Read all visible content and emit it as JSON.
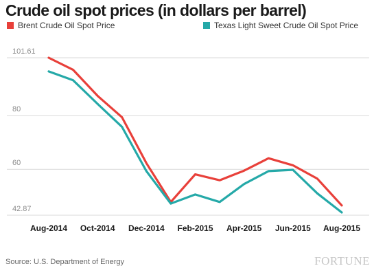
{
  "chart_data": {
    "type": "line",
    "title": "Crude oil spot prices (in dollars per barrel)",
    "x_ticks": [
      "Aug-2014",
      "Oct-2014",
      "Dec-2014",
      "Feb-2015",
      "Apr-2015",
      "Jun-2015",
      "Aug-2015"
    ],
    "y_ticks": [
      42.87,
      60,
      80,
      101.61
    ],
    "y_tick_labels": [
      "42.87",
      "60",
      "80",
      "101.61"
    ],
    "ylim": [
      42.87,
      101.61
    ],
    "xlabel": "",
    "ylabel": "",
    "grid": "horizontal",
    "legend_position": "top",
    "x": [
      "Aug-2014",
      "Sep-2014",
      "Oct-2014",
      "Nov-2014",
      "Dec-2014",
      "Jan-2015",
      "Feb-2015",
      "Mar-2015",
      "Apr-2015",
      "May-2015",
      "Jun-2015",
      "Jul-2015",
      "Aug-2015"
    ],
    "series": [
      {
        "name": "Brent Crude Oil Spot Price",
        "color": "#e8403a",
        "values": [
          101.6,
          97.1,
          87.4,
          79.4,
          62.3,
          47.8,
          58.1,
          55.9,
          59.5,
          64.1,
          61.5,
          56.5,
          46.5
        ]
      },
      {
        "name": "Texas Light Sweet Crude Oil Spot Price",
        "color": "#25a9a8",
        "values": [
          96.5,
          93.2,
          84.4,
          75.8,
          59.3,
          47.2,
          50.6,
          47.8,
          54.5,
          59.3,
          59.8,
          51.0,
          43.9
        ]
      }
    ]
  },
  "footer": {
    "source": "Source: U.S. Department of Energy",
    "brand": "FORTUNE"
  }
}
